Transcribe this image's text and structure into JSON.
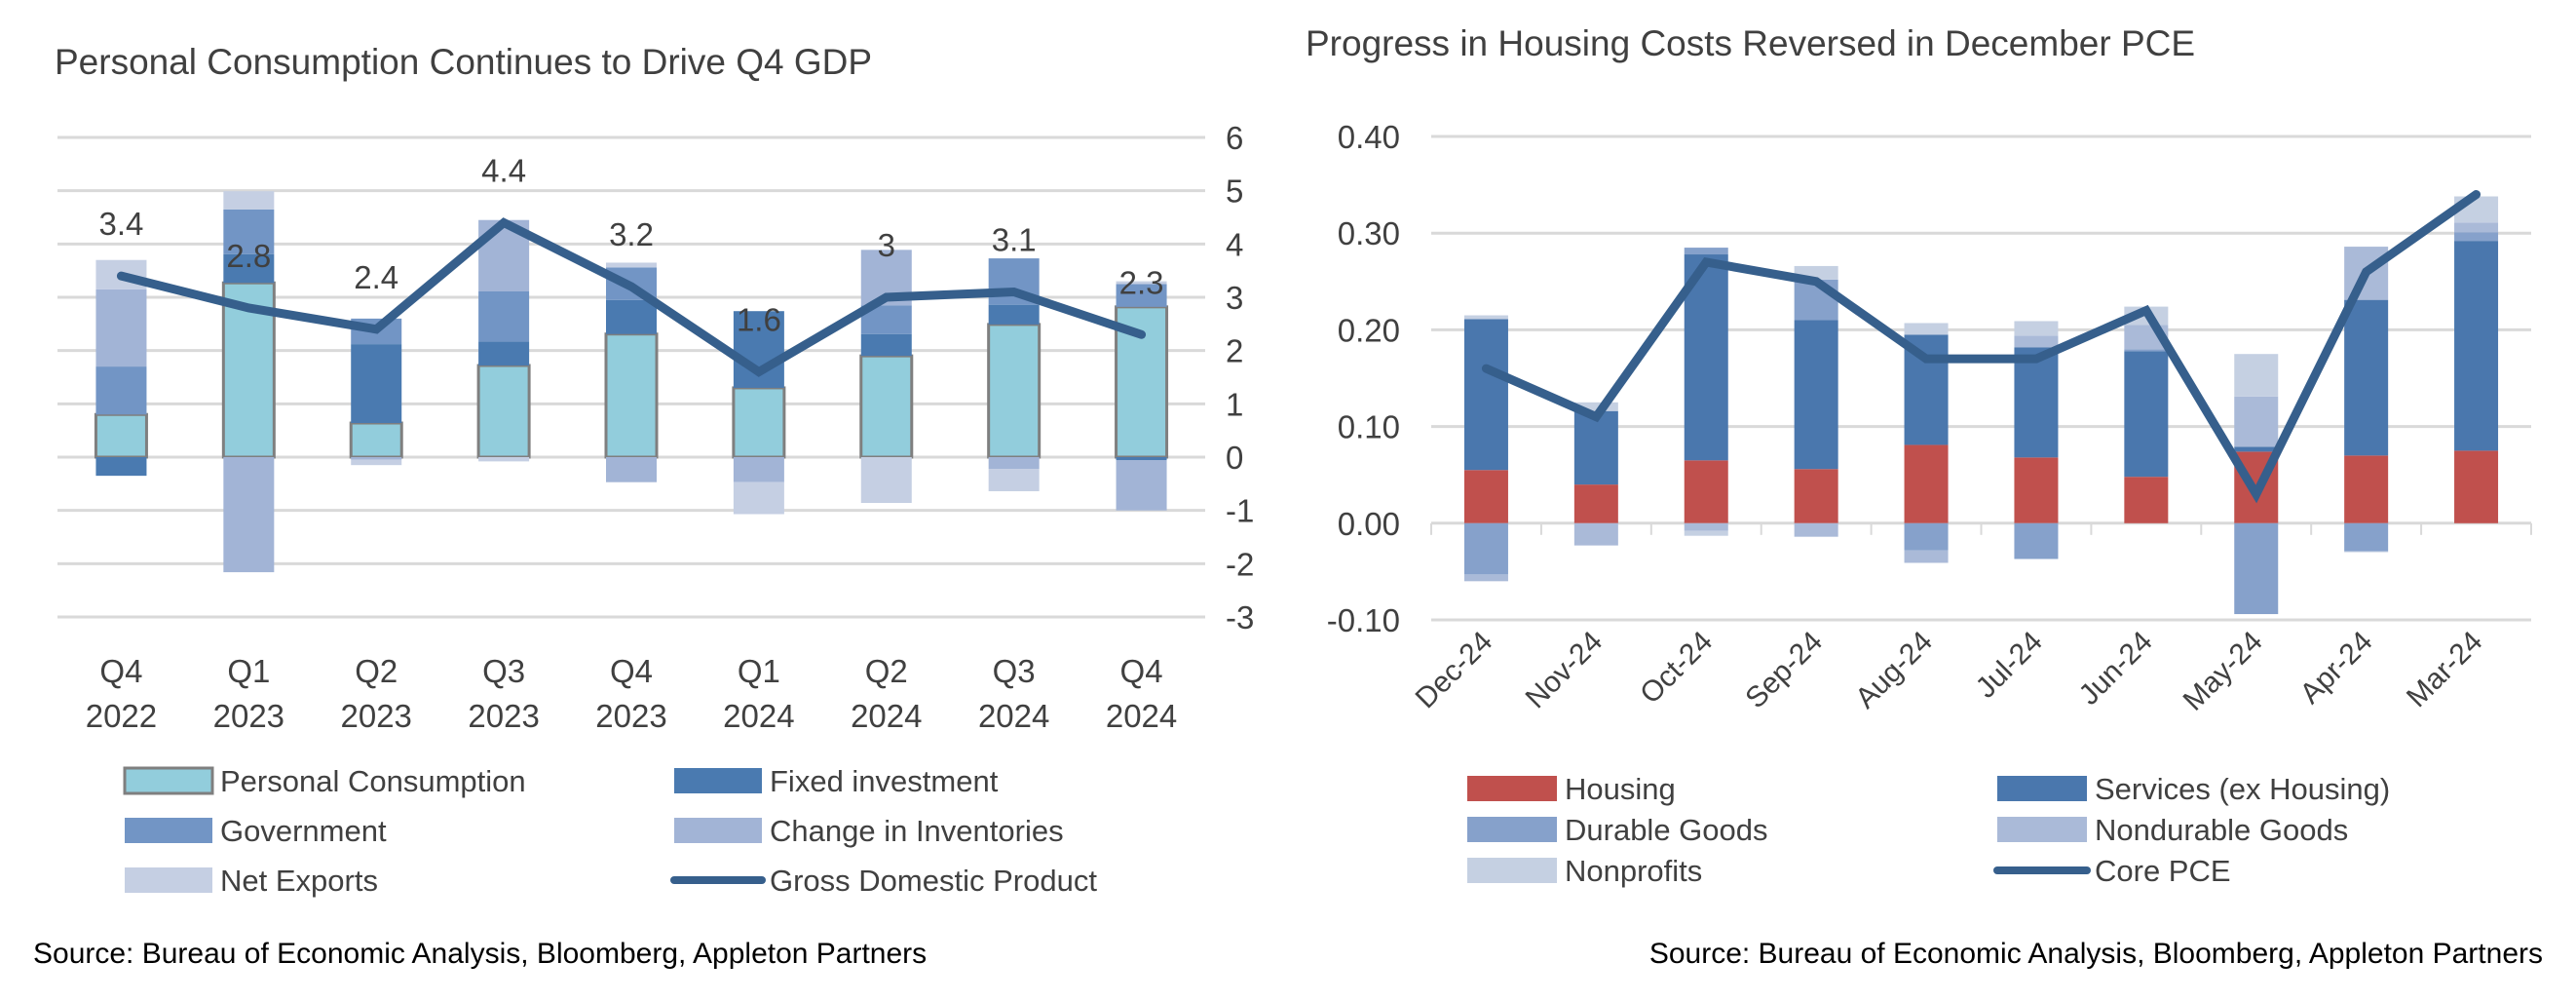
{
  "chart_data": [
    {
      "type": "bar",
      "stacked": true,
      "title": "Personal Consumption Continues to Drive Q4 GDP",
      "categories": [
        [
          "Q4",
          "2022"
        ],
        [
          "Q1",
          "2023"
        ],
        [
          "Q2",
          "2023"
        ],
        [
          "Q3",
          "2023"
        ],
        [
          "Q4",
          "2023"
        ],
        [
          "Q1",
          "2024"
        ],
        [
          "Q2",
          "2024"
        ],
        [
          "Q3",
          "2024"
        ],
        [
          "Q4",
          "2024"
        ]
      ],
      "ylim": [
        -3,
        6
      ],
      "yticks": [
        "-3",
        "-2",
        "-1",
        "0",
        "1",
        "2",
        "3",
        "4",
        "5",
        "6"
      ],
      "grid": true,
      "legend_position": "bottom",
      "series": [
        {
          "name": "Personal Consumption",
          "color": "#92cddc",
          "values": [
            0.8,
            3.27,
            0.64,
            1.72,
            2.31,
            1.3,
            1.9,
            2.49,
            2.82
          ]
        },
        {
          "name": "Fixed investment",
          "color": "#4a7ab0",
          "values": [
            -0.35,
            0.54,
            1.48,
            0.45,
            0.64,
            1.44,
            0.41,
            0.37,
            -0.06
          ]
        },
        {
          "name": "Government",
          "color": "#7295c5",
          "values": [
            0.9,
            0.84,
            0.48,
            0.94,
            0.61,
            0.0,
            0.54,
            0.87,
            0.43
          ]
        },
        {
          "name": "Change in Inventories",
          "color": "#a2b4d6",
          "values": [
            1.45,
            -2.16,
            -0.05,
            1.34,
            -0.47,
            -0.47,
            1.04,
            -0.22,
            -0.94
          ]
        },
        {
          "name": "Net Exports",
          "color": "#c5cfe3",
          "values": [
            0.55,
            0.34,
            -0.1,
            -0.08,
            0.09,
            -0.6,
            -0.86,
            -0.42,
            0.05
          ]
        }
      ],
      "line": {
        "name": "Gross Domestic Product",
        "color": "#365f8c",
        "values": [
          3.4,
          2.8,
          2.4,
          4.4,
          3.2,
          1.6,
          3.0,
          3.1,
          2.3
        ],
        "labels": [
          "3.4",
          "2.8",
          "2.4",
          "4.4",
          "3.2",
          "1.6",
          "3",
          "3.1",
          "2.3"
        ]
      },
      "source": "Source: Bureau of Economic Analysis, Bloomberg, Appleton Partners"
    },
    {
      "type": "bar",
      "stacked": true,
      "title": "Progress in Housing Costs Reversed in December PCE",
      "categories": [
        "Dec-24",
        "Nov-24",
        "Oct-24",
        "Sep-24",
        "Aug-24",
        "Jul-24",
        "Jun-24",
        "May-24",
        "Apr-24",
        "Mar-24"
      ],
      "ylim": [
        -0.1,
        0.4
      ],
      "yticks": [
        "-0.10",
        "0.00",
        "0.10",
        "0.20",
        "0.30",
        "0.40"
      ],
      "grid": true,
      "legend_position": "bottom",
      "series": [
        {
          "name": "Housing",
          "color": "#c0504d",
          "values": [
            0.055,
            0.04,
            0.065,
            0.056,
            0.081,
            0.068,
            0.048,
            0.074,
            0.07,
            0.075
          ]
        },
        {
          "name": "Services (ex Housing)",
          "color": "#4a77ad",
          "values": [
            0.156,
            0.076,
            0.213,
            0.154,
            0.114,
            0.114,
            0.13,
            0.005,
            0.161,
            0.217
          ]
        },
        {
          "name": "Durable Goods",
          "color": "#86a1cb",
          "values": [
            -0.053,
            0.0,
            0.007,
            0.042,
            -0.028,
            -0.037,
            0.002,
            -0.094,
            -0.029,
            0.009
          ]
        },
        {
          "name": "Nondurable Goods",
          "color": "#aabad8",
          "values": [
            -0.007,
            -0.023,
            -0.008,
            -0.014,
            -0.013,
            0.012,
            0.025,
            0.052,
            0.055,
            0.01
          ]
        },
        {
          "name": "Nonprofits",
          "color": "#c5d0e2",
          "values": [
            0.004,
            0.009,
            -0.005,
            0.014,
            0.012,
            0.015,
            0.019,
            0.044,
            -0.001,
            0.027
          ]
        }
      ],
      "line": {
        "name": "Core PCE",
        "color": "#365f8c",
        "values": [
          0.16,
          0.11,
          0.27,
          0.25,
          0.17,
          0.17,
          0.22,
          0.03,
          0.26,
          0.34
        ]
      },
      "source": "Source: Bureau of Economic Analysis, Bloomberg, Appleton Partners"
    }
  ]
}
